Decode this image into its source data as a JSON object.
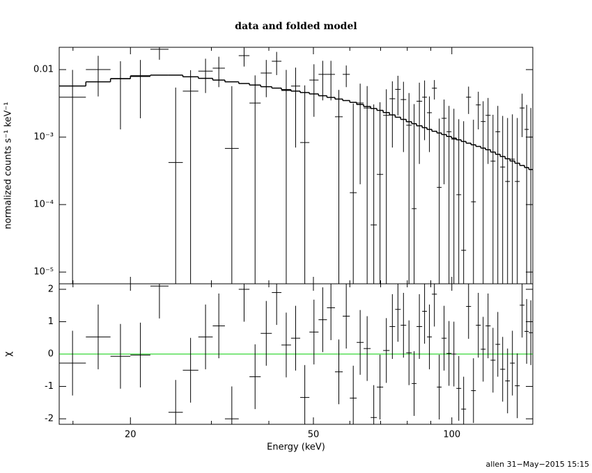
{
  "chart_data": [
    {
      "type": "errorbar",
      "title": "data and folded model",
      "ylabel": "normalized counts s⁻¹ keV⁻¹",
      "xscale": "log",
      "yscale": "log",
      "xlim": [
        14,
        150
      ],
      "ylim": [
        6.7e-06,
        0.0214
      ],
      "xticks": [
        20,
        50,
        100
      ],
      "xminor": [
        15,
        30,
        40,
        60,
        70,
        80,
        90
      ],
      "yticks": [
        {
          "value": 0.01,
          "label": "0.01"
        },
        {
          "value": 0.001,
          "label": "10⁻³"
        },
        {
          "value": 0.0001,
          "label": "10⁻⁴"
        },
        {
          "value": 1e-05,
          "label": "10⁻⁵"
        }
      ],
      "bins": [
        14.0,
        16.0,
        18.1,
        20.0,
        22.1,
        24.2,
        26.0,
        28.1,
        30.2,
        32.1,
        34.4,
        36.3,
        38.4,
        40.6,
        42.6,
        44.7,
        46.8,
        49.0,
        51.3,
        53.5,
        55.7,
        57.9,
        60.0,
        62.1,
        64.3,
        66.6,
        68.7,
        70.9,
        73.2,
        75.3,
        77.4,
        79.6,
        81.8,
        83.8,
        86.2,
        88.3,
        90.5,
        92.8,
        95.0,
        97.4,
        99.8,
        102.3,
        104.8,
        107.4,
        110.1,
        112.8,
        115.6,
        118.4,
        121.4,
        124.4,
        127.4,
        130.6,
        133.8,
        137.1,
        140.5,
        143.9,
        147.0,
        150.0
      ],
      "data": {
        "color": "#000000",
        "values": [
          0.0039,
          0.01,
          0.0073,
          0.0079,
          0.02,
          0.00042,
          0.0048,
          0.0095,
          0.0105,
          0.00068,
          0.0161,
          0.0032,
          0.0089,
          0.0133,
          0.0049,
          0.0057,
          0.00083,
          0.007,
          0.0085,
          0.0085,
          0.002,
          0.0085,
          0.00015,
          0.0032,
          0.0027,
          5e-05,
          0.00028,
          0.0021,
          0.0037,
          0.0051,
          0.0036,
          0.0015,
          8.7e-05,
          0.0034,
          0.0039,
          0.0023,
          0.0053,
          0.00018,
          0.0019,
          0.0012,
          0.00093,
          0.00014,
          2.1e-05,
          0.0039,
          0.00011,
          0.003,
          0.0017,
          0.0021,
          0.00044,
          0.0012,
          0.00036,
          0.00022,
          0.00047,
          0.00022,
          0.0027,
          0.0013,
          0.001
        ],
        "errors": [
          0.006,
          0.006,
          0.006,
          0.006,
          0.006,
          0.005,
          0.005,
          0.005,
          0.005,
          0.005,
          0.005,
          0.005,
          0.005,
          0.005,
          0.005,
          0.005,
          0.005,
          0.005,
          0.005,
          0.005,
          0.003,
          0.003,
          0.003,
          0.003,
          0.003,
          0.003,
          0.003,
          0.003,
          0.003,
          0.003,
          0.003,
          0.003,
          0.003,
          0.003,
          0.003,
          0.0017,
          0.0017,
          0.0017,
          0.0017,
          0.0017,
          0.0017,
          0.0017,
          0.0017,
          0.0017,
          0.0017,
          0.0017,
          0.0017,
          0.0017,
          0.0017,
          0.0017,
          0.0017,
          0.0017,
          0.0017,
          0.0017,
          0.0017,
          0.0017,
          0.0017
        ]
      },
      "model": {
        "color": "#000000",
        "values": [
          0.00572,
          0.0066,
          0.00735,
          0.00808,
          0.00827,
          0.00827,
          0.00783,
          0.00743,
          0.007,
          0.00659,
          0.00622,
          0.0059,
          0.00559,
          0.00532,
          0.00505,
          0.0048,
          0.00457,
          0.00436,
          0.0041,
          0.00387,
          0.00366,
          0.00348,
          0.00327,
          0.00304,
          0.00284,
          0.00265,
          0.00249,
          0.00231,
          0.00213,
          0.00197,
          0.00183,
          0.00169,
          0.00158,
          0.00147,
          0.00138,
          0.0013,
          0.00122,
          0.00115,
          0.00109,
          0.00102,
          0.000965,
          0.000912,
          0.000861,
          0.000813,
          0.000768,
          0.000727,
          0.000687,
          0.000649,
          0.0006,
          0.000556,
          0.000516,
          0.000477,
          0.000442,
          0.00041,
          0.00038,
          0.000354,
          0.000331
        ]
      }
    },
    {
      "type": "errorbar",
      "ylabel": "χ",
      "xlabel": "Energy (keV)",
      "xscale": "log",
      "yscale": "linear",
      "xlim": [
        14,
        150
      ],
      "ylim": [
        -2.17,
        2.17
      ],
      "xticks": [
        20,
        50,
        100
      ],
      "xminor": [
        15,
        30,
        40,
        60,
        70,
        80,
        90
      ],
      "yticks": [
        -2,
        -1,
        0,
        1,
        2
      ],
      "bins": [
        14.0,
        16.0,
        18.1,
        20.0,
        22.1,
        24.2,
        26.0,
        28.1,
        30.2,
        32.1,
        34.4,
        36.3,
        38.4,
        40.6,
        42.6,
        44.7,
        46.8,
        49.0,
        51.3,
        53.5,
        55.7,
        57.9,
        60.0,
        62.1,
        64.3,
        66.6,
        68.7,
        70.9,
        73.2,
        75.3,
        77.4,
        79.6,
        81.8,
        83.8,
        86.2,
        88.3,
        90.5,
        92.8,
        95.0,
        97.4,
        99.8,
        102.3,
        104.8,
        107.4,
        110.1,
        112.8,
        115.6,
        118.4,
        121.4,
        124.4,
        127.4,
        130.6,
        133.8,
        137.1,
        140.5,
        143.9,
        147.0,
        150.0
      ],
      "data": {
        "color": "#000000",
        "values": [
          -0.28,
          0.53,
          -0.07,
          -0.03,
          2.1,
          -1.8,
          -0.5,
          0.53,
          0.87,
          -2.0,
          2.0,
          -0.7,
          0.64,
          1.9,
          0.28,
          0.49,
          -1.34,
          0.68,
          1.06,
          1.43,
          -0.55,
          1.17,
          -1.36,
          0.36,
          0.17,
          -1.96,
          -1.02,
          0.11,
          0.85,
          1.38,
          0.89,
          0.04,
          -0.91,
          0.85,
          1.32,
          0.53,
          1.85,
          -1.02,
          0.49,
          0.02,
          0.0,
          -1.06,
          -1.7,
          1.47,
          -1.13,
          0.89,
          0.15,
          0.87,
          -0.19,
          0.3,
          -0.47,
          -0.83,
          -0.28,
          -0.98,
          1.51,
          0.7,
          0.66
        ],
        "errors": [
          1,
          1,
          1,
          1,
          1,
          1,
          1,
          1,
          1,
          1,
          1,
          1,
          1,
          1,
          1,
          1,
          1,
          1,
          1,
          1,
          1,
          1,
          1,
          1,
          1,
          1,
          1,
          1,
          1,
          1,
          1,
          1,
          1,
          1,
          1,
          1,
          1,
          1,
          1,
          1,
          1,
          1,
          1,
          1,
          1,
          1,
          1,
          1,
          1,
          1,
          1,
          1,
          1,
          1,
          1,
          1,
          1
        ]
      },
      "reference_line": {
        "value": 0,
        "color": "#00cc00"
      }
    }
  ],
  "footer": "allen 31−May−2015 15:15"
}
